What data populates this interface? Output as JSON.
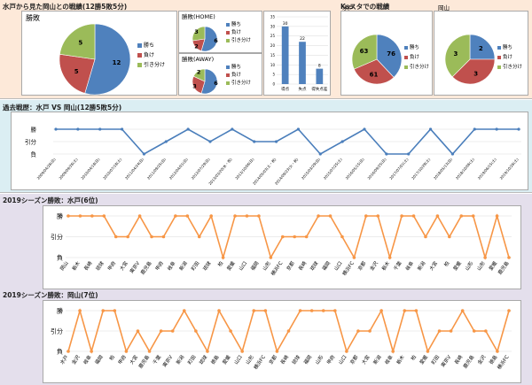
{
  "top": {
    "title": "水戸から見た岡山との戦績(12勝5敗5分)",
    "ks_title": "Ksスタでの戦績"
  },
  "legend": [
    "勝ち",
    "負け",
    "引き分け"
  ],
  "colors": {
    "win": "#4f81bd",
    "loss": "#c0504d",
    "draw": "#9bbb59",
    "line_blue": "#4a7ebb",
    "line_orange": "#f79646",
    "top_bg": "#fde9d9",
    "mid_bg": "#dbeef3",
    "bot_bg": "#e4dfec"
  },
  "chart_data": [
    {
      "id": "overall",
      "type": "pie",
      "title": "勝敗",
      "labels": [
        "勝ち",
        "負け",
        "引き分け"
      ],
      "values": [
        12,
        5,
        5
      ]
    },
    {
      "id": "home",
      "type": "pie",
      "title": "勝敗(HOME)",
      "labels": [
        "勝ち",
        "負け",
        "引き分け"
      ],
      "values": [
        6,
        2,
        3
      ]
    },
    {
      "id": "away",
      "type": "pie",
      "title": "勝敗(AWAY)",
      "labels": [
        "勝ち",
        "負け",
        "引き分け"
      ],
      "values": [
        6,
        3,
        2
      ]
    },
    {
      "id": "goals",
      "type": "bar",
      "categories": [
        "得点",
        "失点",
        "得失点差"
      ],
      "values": [
        30,
        22,
        8
      ],
      "ylim": [
        0,
        35
      ]
    },
    {
      "id": "ks_mito",
      "type": "pie",
      "title": "水戸",
      "labels": [
        "勝ち",
        "負け",
        "引き分け"
      ],
      "values": [
        76,
        61,
        63
      ]
    },
    {
      "id": "ks_okayama",
      "type": "pie",
      "title": "岡山",
      "labels": [
        "勝ち",
        "負け",
        "引き分け"
      ],
      "values": [
        2,
        3,
        3
      ]
    },
    {
      "id": "history",
      "type": "line",
      "title": "過去戦歴：水戸 VS 岡山(12勝5敗5分)",
      "y_categories": [
        "負",
        "引分",
        "勝"
      ],
      "x": [
        "2009/04/26(日)",
        "2009/09/26(土)",
        "2010/04/18(日)",
        "2010/07/18(土)",
        "2011/04/24(日)",
        "2011/09/25(日)",
        "2012/04/01(日)",
        "2012/07/29(日)",
        "2013/03/20(水・祝)",
        "2013/10/06(日)",
        "2014/05/03(土・祝)",
        "2014/09/23(火・祝)",
        "2015/03/29(日)",
        "2015/07/25(土)",
        "2016/05/15(日)",
        "2016/09/25(日)",
        "2017/07/01(土)",
        "2017/10/28(土)",
        "2018/05/13(日)",
        "2018/10/06(土)",
        "2019/06/15(土)",
        "2019/10/26(土)"
      ],
      "values": [
        2,
        2,
        2,
        2,
        0,
        1,
        2,
        1,
        2,
        1,
        1,
        2,
        0,
        1,
        2,
        0,
        0,
        2,
        0,
        2,
        2,
        2
      ]
    },
    {
      "id": "mito2019",
      "type": "line",
      "title": "2019シーズン勝敗：水戸(6位)",
      "y_categories": [
        "負",
        "引分",
        "勝"
      ],
      "x": [
        "岡山",
        "栃木",
        "長崎",
        "琉球",
        "甲府",
        "大宮",
        "東京V",
        "鹿児島",
        "甲府",
        "岐阜",
        "新潟",
        "町田",
        "琉球",
        "柏",
        "愛媛",
        "山口",
        "福岡",
        "山形",
        "横浜FC",
        "京都",
        "長崎",
        "琉球",
        "福岡",
        "山口",
        "横浜FC",
        "京都",
        "金沢",
        "栃木",
        "千葉",
        "岐阜",
        "新潟",
        "大宮",
        "柏",
        "愛媛",
        "山形",
        "山形",
        "愛媛",
        "鹿児島"
      ],
      "values": [
        2,
        2,
        2,
        2,
        1,
        1,
        2,
        1,
        1,
        2,
        2,
        1,
        2,
        0,
        2,
        2,
        2,
        0,
        1,
        1,
        1,
        2,
        2,
        1,
        0,
        2,
        2,
        0,
        2,
        2,
        1,
        2,
        1,
        2,
        2,
        0,
        2,
        0
      ]
    },
    {
      "id": "okayama2019",
      "type": "line",
      "title": "2019シーズン勝敗：岡山(7位)",
      "y_categories": [
        "負",
        "引分",
        "勝"
      ],
      "x": [
        "水戸",
        "金沢",
        "岐阜",
        "福岡",
        "柏",
        "甲府",
        "大宮",
        "鹿児島",
        "千葉",
        "東京V",
        "新潟",
        "町田",
        "琉球",
        "徳島",
        "愛媛",
        "山口",
        "山形",
        "横浜FC",
        "京都",
        "長崎",
        "琉球",
        "福岡",
        "山形",
        "甲府",
        "山口",
        "京都",
        "大宮",
        "新潟",
        "岐阜",
        "栃木",
        "柏",
        "愛媛",
        "町田",
        "東京V",
        "長崎",
        "鹿児島",
        "金沢",
        "徳島",
        "横浜FC"
      ],
      "values": [
        0,
        2,
        0,
        2,
        2,
        0,
        1,
        0,
        1,
        1,
        2,
        1,
        0,
        2,
        1,
        0,
        2,
        2,
        0,
        1,
        2,
        2,
        2,
        2,
        0,
        1,
        1,
        2,
        0,
        2,
        2,
        0,
        1,
        1,
        2,
        1,
        1,
        0,
        2
      ]
    }
  ]
}
